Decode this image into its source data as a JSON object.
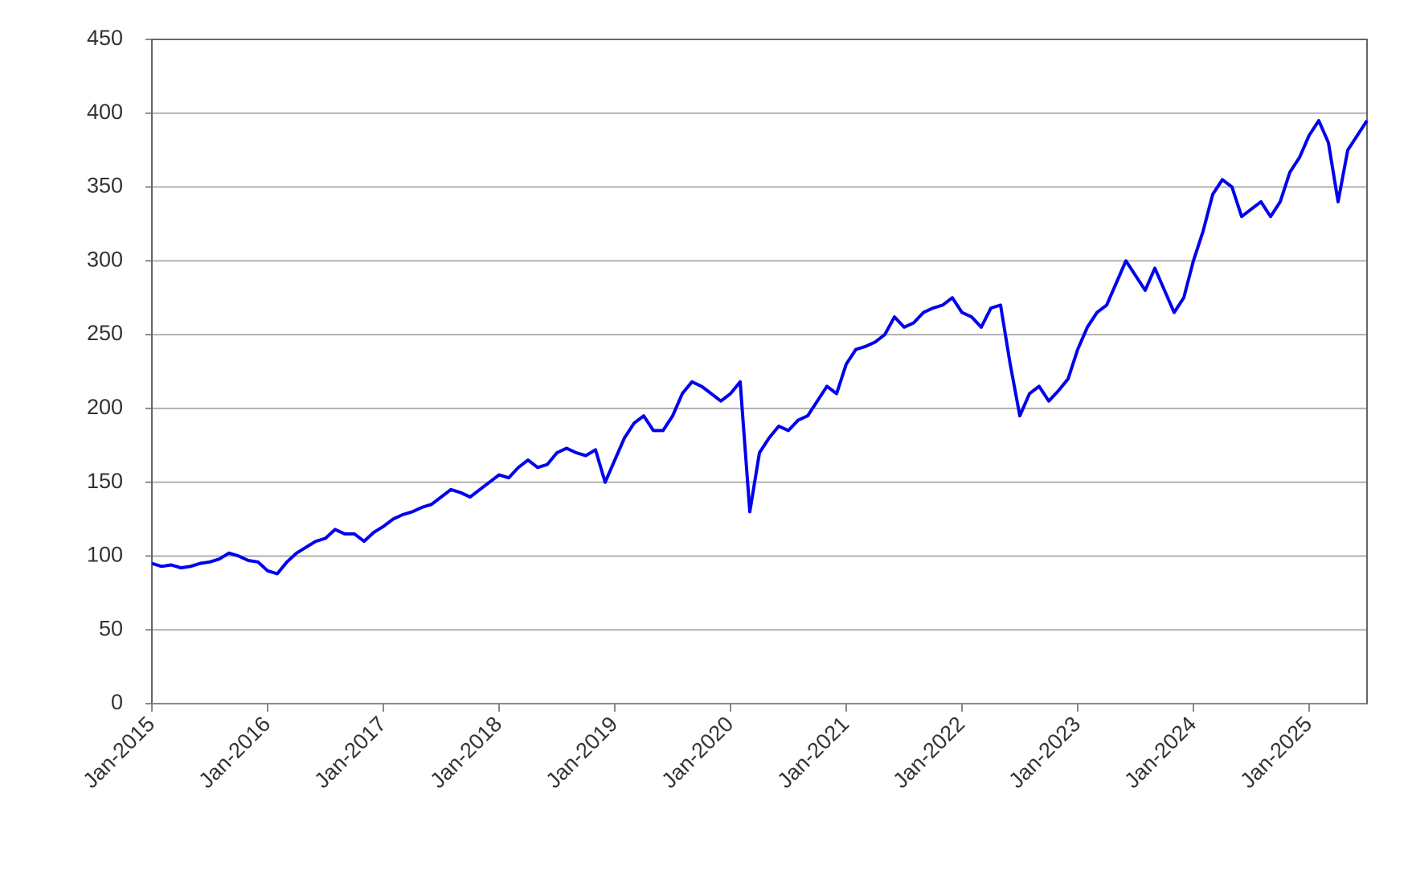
{
  "chart_data": {
    "type": "line",
    "color": "#0000ee",
    "grid": true,
    "x": [
      "2015-01",
      "2015-02",
      "2015-03",
      "2015-04",
      "2015-05",
      "2015-06",
      "2015-07",
      "2015-08",
      "2015-09",
      "2015-10",
      "2015-11",
      "2015-12",
      "2016-01",
      "2016-02",
      "2016-03",
      "2016-04",
      "2016-05",
      "2016-06",
      "2016-07",
      "2016-08",
      "2016-09",
      "2016-10",
      "2016-11",
      "2016-12",
      "2017-01",
      "2017-02",
      "2017-03",
      "2017-04",
      "2017-05",
      "2017-06",
      "2017-07",
      "2017-08",
      "2017-09",
      "2017-10",
      "2017-11",
      "2017-12",
      "2018-01",
      "2018-02",
      "2018-03",
      "2018-04",
      "2018-05",
      "2018-06",
      "2018-07",
      "2018-08",
      "2018-09",
      "2018-10",
      "2018-11",
      "2018-12",
      "2019-01",
      "2019-02",
      "2019-03",
      "2019-04",
      "2019-05",
      "2019-06",
      "2019-07",
      "2019-08",
      "2019-09",
      "2019-10",
      "2019-11",
      "2019-12",
      "2020-01",
      "2020-02",
      "2020-03",
      "2020-04",
      "2020-05",
      "2020-06",
      "2020-07",
      "2020-08",
      "2020-09",
      "2020-10",
      "2020-11",
      "2020-12",
      "2021-01",
      "2021-02",
      "2021-03",
      "2021-04",
      "2021-05",
      "2021-06",
      "2021-07",
      "2021-08",
      "2021-09",
      "2021-10",
      "2021-11",
      "2021-12",
      "2022-01",
      "2022-02",
      "2022-03",
      "2022-04",
      "2022-05",
      "2022-06",
      "2022-07",
      "2022-08",
      "2022-09",
      "2022-10",
      "2022-11",
      "2022-12",
      "2023-01",
      "2023-02",
      "2023-03",
      "2023-04",
      "2023-05",
      "2023-06",
      "2023-07",
      "2023-08",
      "2023-09",
      "2023-10",
      "2023-11",
      "2023-12",
      "2024-01",
      "2024-02",
      "2024-03",
      "2024-04",
      "2024-05",
      "2024-06",
      "2024-07",
      "2024-08",
      "2024-09",
      "2024-10",
      "2024-11",
      "2024-12",
      "2025-01",
      "2025-02",
      "2025-03",
      "2025-04",
      "2025-05",
      "2025-06",
      "2025-07"
    ],
    "values": [
      95,
      93,
      94,
      92,
      93,
      95,
      96,
      98,
      102,
      100,
      97,
      96,
      90,
      88,
      96,
      102,
      106,
      110,
      112,
      118,
      115,
      115,
      110,
      116,
      120,
      125,
      128,
      130,
      133,
      135,
      140,
      145,
      143,
      140,
      145,
      150,
      155,
      153,
      160,
      165,
      160,
      162,
      170,
      173,
      170,
      168,
      172,
      150,
      165,
      180,
      190,
      195,
      185,
      185,
      195,
      210,
      218,
      215,
      210,
      205,
      210,
      218,
      130,
      170,
      180,
      188,
      185,
      192,
      195,
      205,
      215,
      210,
      230,
      240,
      242,
      245,
      250,
      262,
      255,
      258,
      265,
      268,
      270,
      275,
      265,
      262,
      255,
      268,
      270,
      230,
      195,
      210,
      215,
      205,
      212,
      220,
      240,
      255,
      265,
      270,
      285,
      300,
      290,
      280,
      295,
      280,
      265,
      275,
      300,
      320,
      345,
      355,
      350,
      330,
      335,
      340,
      330,
      340,
      360,
      370,
      385,
      395,
      380,
      340,
      375,
      385,
      395
    ],
    "xlim": [
      "2015-01",
      "2025-07"
    ],
    "xticks": [
      {
        "value": "2015-01",
        "label": "Jan-2015"
      },
      {
        "value": "2016-01",
        "label": "Jan-2016"
      },
      {
        "value": "2017-01",
        "label": "Jan-2017"
      },
      {
        "value": "2018-01",
        "label": "Jan-2018"
      },
      {
        "value": "2019-01",
        "label": "Jan-2019"
      },
      {
        "value": "2020-01",
        "label": "Jan-2020"
      },
      {
        "value": "2021-01",
        "label": "Jan-2021"
      },
      {
        "value": "2022-01",
        "label": "Jan-2022"
      },
      {
        "value": "2023-01",
        "label": "Jan-2023"
      },
      {
        "value": "2024-01",
        "label": "Jan-2024"
      },
      {
        "value": "2025-01",
        "label": "Jan-2025"
      }
    ],
    "ylim": [
      0,
      450
    ],
    "yticks": [
      0,
      50,
      100,
      150,
      200,
      250,
      300,
      350,
      400,
      450
    ]
  }
}
